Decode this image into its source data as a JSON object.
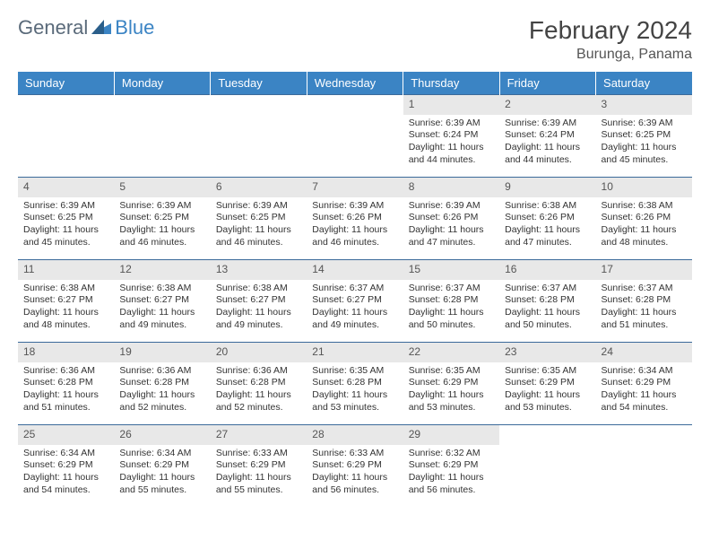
{
  "logo": {
    "part1": "General",
    "part2": "Blue"
  },
  "title": "February 2024",
  "location": "Burunga, Panama",
  "colors": {
    "header_bg": "#3b84c4",
    "header_text": "#ffffff",
    "daynum_bg": "#e8e8e8",
    "border": "#3b6a9a",
    "text": "#333333",
    "logo_gray": "#5a6a7a",
    "logo_blue": "#3b84c4"
  },
  "day_labels": [
    "Sunday",
    "Monday",
    "Tuesday",
    "Wednesday",
    "Thursday",
    "Friday",
    "Saturday"
  ],
  "weeks": [
    [
      {
        "n": "",
        "empty": true
      },
      {
        "n": "",
        "empty": true
      },
      {
        "n": "",
        "empty": true
      },
      {
        "n": "",
        "empty": true
      },
      {
        "n": "1",
        "sr": "Sunrise: 6:39 AM",
        "ss": "Sunset: 6:24 PM",
        "dl": "Daylight: 11 hours and 44 minutes."
      },
      {
        "n": "2",
        "sr": "Sunrise: 6:39 AM",
        "ss": "Sunset: 6:24 PM",
        "dl": "Daylight: 11 hours and 44 minutes."
      },
      {
        "n": "3",
        "sr": "Sunrise: 6:39 AM",
        "ss": "Sunset: 6:25 PM",
        "dl": "Daylight: 11 hours and 45 minutes."
      }
    ],
    [
      {
        "n": "4",
        "sr": "Sunrise: 6:39 AM",
        "ss": "Sunset: 6:25 PM",
        "dl": "Daylight: 11 hours and 45 minutes."
      },
      {
        "n": "5",
        "sr": "Sunrise: 6:39 AM",
        "ss": "Sunset: 6:25 PM",
        "dl": "Daylight: 11 hours and 46 minutes."
      },
      {
        "n": "6",
        "sr": "Sunrise: 6:39 AM",
        "ss": "Sunset: 6:25 PM",
        "dl": "Daylight: 11 hours and 46 minutes."
      },
      {
        "n": "7",
        "sr": "Sunrise: 6:39 AM",
        "ss": "Sunset: 6:26 PM",
        "dl": "Daylight: 11 hours and 46 minutes."
      },
      {
        "n": "8",
        "sr": "Sunrise: 6:39 AM",
        "ss": "Sunset: 6:26 PM",
        "dl": "Daylight: 11 hours and 47 minutes."
      },
      {
        "n": "9",
        "sr": "Sunrise: 6:38 AM",
        "ss": "Sunset: 6:26 PM",
        "dl": "Daylight: 11 hours and 47 minutes."
      },
      {
        "n": "10",
        "sr": "Sunrise: 6:38 AM",
        "ss": "Sunset: 6:26 PM",
        "dl": "Daylight: 11 hours and 48 minutes."
      }
    ],
    [
      {
        "n": "11",
        "sr": "Sunrise: 6:38 AM",
        "ss": "Sunset: 6:27 PM",
        "dl": "Daylight: 11 hours and 48 minutes."
      },
      {
        "n": "12",
        "sr": "Sunrise: 6:38 AM",
        "ss": "Sunset: 6:27 PM",
        "dl": "Daylight: 11 hours and 49 minutes."
      },
      {
        "n": "13",
        "sr": "Sunrise: 6:38 AM",
        "ss": "Sunset: 6:27 PM",
        "dl": "Daylight: 11 hours and 49 minutes."
      },
      {
        "n": "14",
        "sr": "Sunrise: 6:37 AM",
        "ss": "Sunset: 6:27 PM",
        "dl": "Daylight: 11 hours and 49 minutes."
      },
      {
        "n": "15",
        "sr": "Sunrise: 6:37 AM",
        "ss": "Sunset: 6:28 PM",
        "dl": "Daylight: 11 hours and 50 minutes."
      },
      {
        "n": "16",
        "sr": "Sunrise: 6:37 AM",
        "ss": "Sunset: 6:28 PM",
        "dl": "Daylight: 11 hours and 50 minutes."
      },
      {
        "n": "17",
        "sr": "Sunrise: 6:37 AM",
        "ss": "Sunset: 6:28 PM",
        "dl": "Daylight: 11 hours and 51 minutes."
      }
    ],
    [
      {
        "n": "18",
        "sr": "Sunrise: 6:36 AM",
        "ss": "Sunset: 6:28 PM",
        "dl": "Daylight: 11 hours and 51 minutes."
      },
      {
        "n": "19",
        "sr": "Sunrise: 6:36 AM",
        "ss": "Sunset: 6:28 PM",
        "dl": "Daylight: 11 hours and 52 minutes."
      },
      {
        "n": "20",
        "sr": "Sunrise: 6:36 AM",
        "ss": "Sunset: 6:28 PM",
        "dl": "Daylight: 11 hours and 52 minutes."
      },
      {
        "n": "21",
        "sr": "Sunrise: 6:35 AM",
        "ss": "Sunset: 6:28 PM",
        "dl": "Daylight: 11 hours and 53 minutes."
      },
      {
        "n": "22",
        "sr": "Sunrise: 6:35 AM",
        "ss": "Sunset: 6:29 PM",
        "dl": "Daylight: 11 hours and 53 minutes."
      },
      {
        "n": "23",
        "sr": "Sunrise: 6:35 AM",
        "ss": "Sunset: 6:29 PM",
        "dl": "Daylight: 11 hours and 53 minutes."
      },
      {
        "n": "24",
        "sr": "Sunrise: 6:34 AM",
        "ss": "Sunset: 6:29 PM",
        "dl": "Daylight: 11 hours and 54 minutes."
      }
    ],
    [
      {
        "n": "25",
        "sr": "Sunrise: 6:34 AM",
        "ss": "Sunset: 6:29 PM",
        "dl": "Daylight: 11 hours and 54 minutes."
      },
      {
        "n": "26",
        "sr": "Sunrise: 6:34 AM",
        "ss": "Sunset: 6:29 PM",
        "dl": "Daylight: 11 hours and 55 minutes."
      },
      {
        "n": "27",
        "sr": "Sunrise: 6:33 AM",
        "ss": "Sunset: 6:29 PM",
        "dl": "Daylight: 11 hours and 55 minutes."
      },
      {
        "n": "28",
        "sr": "Sunrise: 6:33 AM",
        "ss": "Sunset: 6:29 PM",
        "dl": "Daylight: 11 hours and 56 minutes."
      },
      {
        "n": "29",
        "sr": "Sunrise: 6:32 AM",
        "ss": "Sunset: 6:29 PM",
        "dl": "Daylight: 11 hours and 56 minutes."
      },
      {
        "n": "",
        "empty": true
      },
      {
        "n": "",
        "empty": true
      }
    ]
  ]
}
